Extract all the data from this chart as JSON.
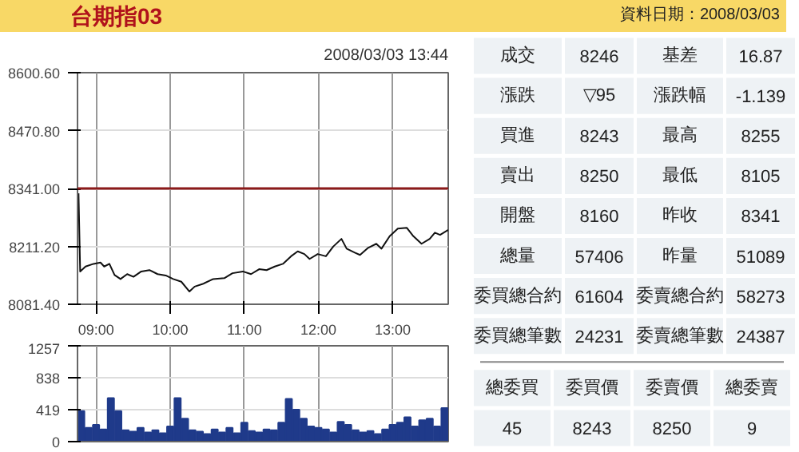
{
  "chart_data": [
    {
      "type": "line",
      "title": "台期指03",
      "annotations": [
        "2008/03/03 13:44"
      ],
      "xlim": [
        8.75,
        13.75
      ],
      "ylim": [
        8081.4,
        8600.6
      ],
      "xticks": [
        {
          "value": 9,
          "label": "09:00"
        },
        {
          "value": 10,
          "label": "10:00"
        },
        {
          "value": 11,
          "label": "11:00"
        },
        {
          "value": 12,
          "label": "12:00"
        },
        {
          "value": 13,
          "label": "13:00"
        }
      ],
      "yticks": [
        {
          "value": 8081.4,
          "label": "8081.40"
        },
        {
          "value": 8211.2,
          "label": "8211.20"
        },
        {
          "value": 8341.0,
          "label": "8341.00"
        },
        {
          "value": 8470.8,
          "label": "8470.80"
        },
        {
          "value": 8600.6,
          "label": "8600.60"
        }
      ],
      "grid": true,
      "line_style": "solid",
      "ref_lines": [
        {
          "axis": "y",
          "value": 8341.0,
          "label": null,
          "color": "#8b1a1a"
        }
      ],
      "series": [
        {
          "color": "#111111",
          "x": [
            8.764,
            8.786,
            8.858,
            8.966,
            9.06,
            9.11,
            9.18,
            9.25,
            9.33,
            9.42,
            9.505,
            9.61,
            9.72,
            9.83,
            9.94,
            10.04,
            10.15,
            10.26,
            10.33,
            10.44,
            10.58,
            10.73,
            10.84,
            10.98,
            11.09,
            11.2,
            11.3,
            11.41,
            11.52,
            11.63,
            11.72,
            11.81,
            11.88,
            11.99,
            12.1,
            12.2,
            12.31,
            12.38,
            12.49,
            12.56,
            12.67,
            12.78,
            12.85,
            12.96,
            13.07,
            13.19,
            13.28,
            13.39,
            13.5,
            13.57,
            13.64,
            13.75
          ],
          "values": [
            8330,
            8155,
            8166,
            8172,
            8175,
            8166,
            8172,
            8147,
            8138,
            8149,
            8143,
            8155,
            8158,
            8149,
            8146,
            8138,
            8132,
            8110,
            8121,
            8127,
            8138,
            8140,
            8151,
            8155,
            8149,
            8160,
            8158,
            8166,
            8172,
            8189,
            8200,
            8194,
            8183,
            8194,
            8189,
            8211,
            8228,
            8206,
            8197,
            8192,
            8208,
            8217,
            8206,
            8234,
            8251,
            8253,
            8234,
            8217,
            8228,
            8242,
            8237,
            8248
          ]
        }
      ]
    },
    {
      "type": "bar",
      "xlim": [
        8.75,
        13.75
      ],
      "ylim": [
        0,
        1257
      ],
      "xticks": [
        9,
        10,
        11,
        12,
        13
      ],
      "yticks": [
        0,
        419,
        838,
        1257
      ],
      "grid": true,
      "tick_labels": "y",
      "x": [
        8.8,
        8.9,
        9.0,
        9.1,
        9.2,
        9.3,
        9.4,
        9.5,
        9.6,
        9.7,
        9.8,
        9.9,
        10.0,
        10.1,
        10.2,
        10.3,
        10.4,
        10.5,
        10.6,
        10.7,
        10.8,
        10.9,
        11.0,
        11.1,
        11.2,
        11.3,
        11.4,
        11.5,
        11.6,
        11.7,
        11.8,
        11.9,
        12.0,
        12.1,
        12.2,
        12.3,
        12.4,
        12.5,
        12.6,
        12.7,
        12.8,
        12.9,
        13.0,
        13.1,
        13.2,
        13.3,
        13.4,
        13.5,
        13.6,
        13.7
      ],
      "series": [
        {
          "color": "#1f3a8a",
          "values": [
            400,
            180,
            220,
            160,
            570,
            400,
            150,
            130,
            180,
            120,
            150,
            110,
            200,
            570,
            300,
            150,
            130,
            100,
            160,
            120,
            180,
            110,
            250,
            140,
            120,
            160,
            150,
            250,
            560,
            420,
            300,
            200,
            180,
            160,
            120,
            260,
            220,
            150,
            120,
            140,
            100,
            160,
            220,
            250,
            320,
            200,
            280,
            300,
            200,
            440
          ]
        }
      ]
    },
    {
      "type": "other",
      "title": "資料日期：2008/03/03",
      "annotations": [
        "成交",
        "8246",
        "基差",
        "16.87",
        "漲跌",
        "▽95",
        "漲跌幅",
        "-1.139",
        "買進",
        "8243",
        "最高",
        "8255",
        "賣出",
        "8250",
        "最低",
        "8105",
        "開盤",
        "8160",
        "昨收",
        "8341",
        "總量",
        "57406",
        "昨量",
        "51089",
        "委買總合約",
        "61604",
        "委賣總合約",
        "58273",
        "委買總筆數",
        "24231",
        "委賣總筆數",
        "24387",
        "總委買",
        "委買價",
        "委賣價",
        "總委賣",
        "45",
        "8243",
        "8250",
        "9"
      ]
    }
  ]
}
